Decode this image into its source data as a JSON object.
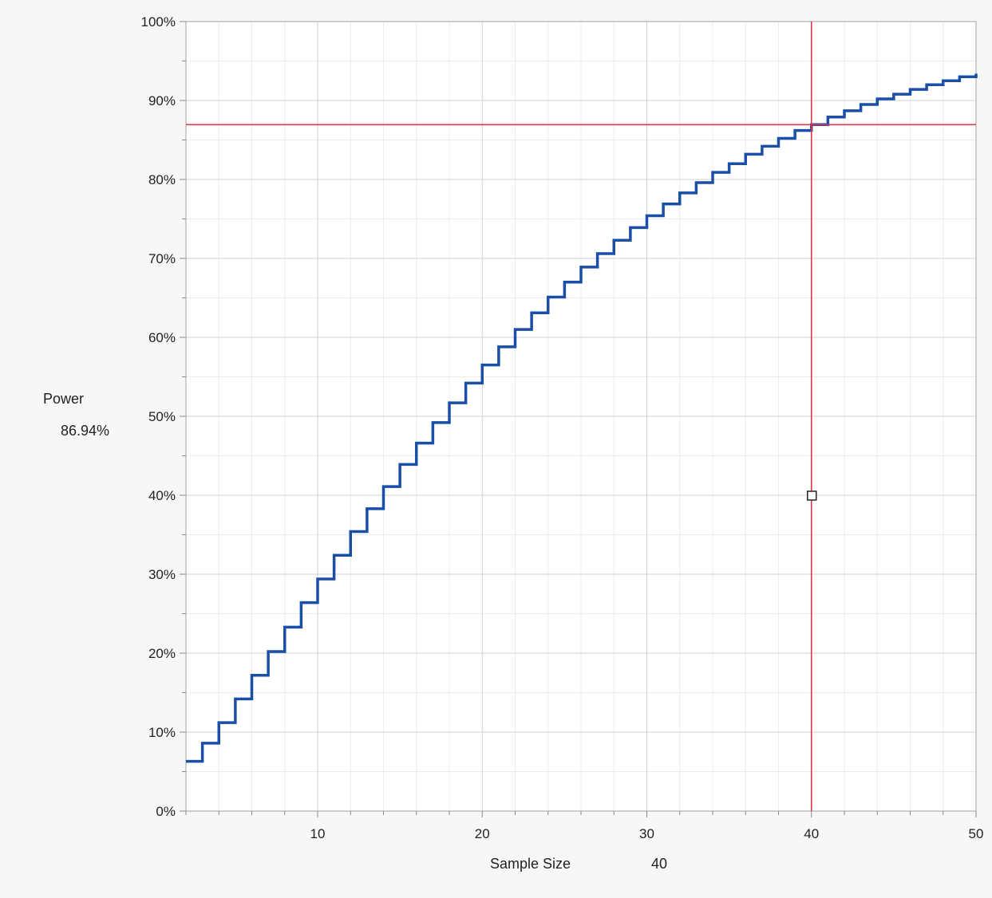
{
  "y_axis": {
    "label": "Power",
    "current_value": "86.94%"
  },
  "x_axis": {
    "label": "Sample Size",
    "current_value": "40"
  },
  "chart_data": {
    "type": "line",
    "style": "step",
    "xlabel": "Sample Size",
    "ylabel": "Power",
    "xlim": [
      2,
      50
    ],
    "ylim": [
      0,
      100
    ],
    "x_ticks": [
      10,
      20,
      30,
      40,
      50
    ],
    "y_ticks": [
      0,
      10,
      20,
      30,
      40,
      50,
      60,
      70,
      80,
      90,
      100
    ],
    "y_tick_suffix": "%",
    "grid": true,
    "series": [
      {
        "color": "#1a4fa8",
        "x": [
          2,
          3,
          4,
          5,
          6,
          7,
          8,
          9,
          10,
          11,
          12,
          13,
          14,
          15,
          16,
          17,
          18,
          19,
          20,
          21,
          22,
          23,
          24,
          25,
          26,
          27,
          28,
          29,
          30,
          31,
          32,
          33,
          34,
          35,
          36,
          37,
          38,
          39,
          40,
          41,
          42,
          43,
          44,
          45,
          46,
          47,
          48,
          49,
          50
        ],
        "values": [
          6.3,
          8.6,
          11.2,
          14.2,
          17.2,
          20.2,
          23.3,
          26.4,
          29.4,
          32.4,
          35.4,
          38.3,
          41.1,
          43.9,
          46.6,
          49.2,
          51.7,
          54.2,
          56.5,
          58.8,
          61.0,
          63.1,
          65.1,
          67.0,
          68.9,
          70.6,
          72.3,
          73.9,
          75.4,
          76.9,
          78.3,
          79.6,
          80.9,
          82.0,
          83.2,
          84.2,
          85.2,
          86.2,
          86.94,
          87.9,
          88.7,
          89.5,
          90.2,
          90.8,
          91.4,
          92.0,
          92.5,
          93.0,
          93.4
        ]
      }
    ],
    "crosshair": {
      "x": 40,
      "y": 86.94,
      "color": "#e0344a",
      "handle_y": 40
    }
  }
}
